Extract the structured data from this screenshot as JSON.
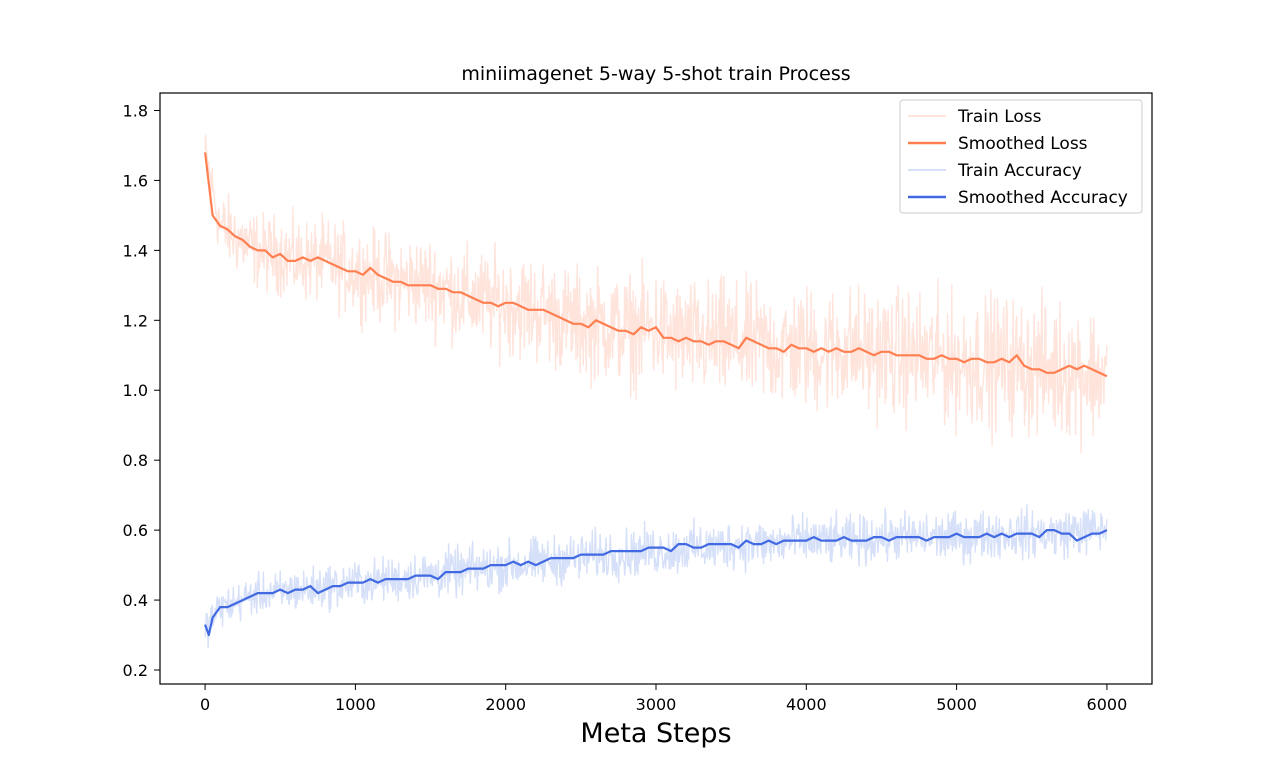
{
  "chart_data": {
    "type": "line",
    "title": "miniimagenet 5-way 5-shot train Process",
    "xlabel": "Meta Steps",
    "ylabel": "",
    "xlim": [
      -300,
      6300
    ],
    "ylim": [
      0.16,
      1.85
    ],
    "x_ticks": [
      0,
      1000,
      2000,
      3000,
      4000,
      5000,
      6000
    ],
    "y_ticks": [
      0.2,
      0.4,
      0.6,
      0.8,
      1.0,
      1.2,
      1.4,
      1.6,
      1.8
    ],
    "y_tick_labels": [
      "0.2",
      "0.4",
      "0.6",
      "0.8",
      "1.0",
      "1.2",
      "1.4",
      "1.6",
      "1.8"
    ],
    "legend_position": "top-right",
    "grid": false,
    "series": [
      {
        "name": "Train Loss",
        "color": "#ffe4dc",
        "kind": "raw",
        "x": [
          0,
          100,
          200,
          300,
          400,
          500,
          600,
          700,
          800,
          900,
          1000,
          1100,
          1200,
          1300,
          1400,
          1500,
          1600,
          1700,
          1800,
          1900,
          2000,
          2100,
          2200,
          2300,
          2400,
          2500,
          2600,
          2700,
          2800,
          2900,
          3000,
          3100,
          3200,
          3300,
          3400,
          3500,
          3600,
          3700,
          3800,
          3900,
          4000,
          4100,
          4200,
          4300,
          4400,
          4500,
          4600,
          4700,
          4800,
          4900,
          5000,
          5100,
          5200,
          5300,
          5400,
          5500,
          5600,
          5700,
          5800,
          5900,
          6000
        ],
        "y_center": [
          1.68,
          1.47,
          1.44,
          1.41,
          1.39,
          1.39,
          1.37,
          1.37,
          1.37,
          1.35,
          1.34,
          1.33,
          1.32,
          1.31,
          1.31,
          1.3,
          1.29,
          1.27,
          1.26,
          1.25,
          1.25,
          1.24,
          1.23,
          1.22,
          1.2,
          1.19,
          1.19,
          1.18,
          1.17,
          1.17,
          1.18,
          1.15,
          1.15,
          1.14,
          1.14,
          1.14,
          1.13,
          1.13,
          1.12,
          1.12,
          1.12,
          1.11,
          1.12,
          1.12,
          1.11,
          1.11,
          1.1,
          1.1,
          1.09,
          1.09,
          1.08,
          1.08,
          1.08,
          1.08,
          1.07,
          1.07,
          1.06,
          1.06,
          1.06,
          1.05,
          1.04
        ],
        "y_spread": [
          0.1,
          0.14,
          0.15,
          0.15,
          0.16,
          0.16,
          0.17,
          0.17,
          0.17,
          0.18,
          0.18,
          0.18,
          0.19,
          0.19,
          0.19,
          0.2,
          0.2,
          0.2,
          0.21,
          0.21,
          0.21,
          0.22,
          0.22,
          0.22,
          0.22,
          0.23,
          0.23,
          0.23,
          0.23,
          0.24,
          0.24,
          0.24,
          0.24,
          0.24,
          0.25,
          0.25,
          0.25,
          0.25,
          0.25,
          0.25,
          0.26,
          0.26,
          0.26,
          0.26,
          0.26,
          0.26,
          0.27,
          0.27,
          0.27,
          0.27,
          0.27,
          0.27,
          0.28,
          0.28,
          0.28,
          0.28,
          0.28,
          0.28,
          0.28,
          0.28,
          0.2
        ]
      },
      {
        "name": "Smoothed Loss",
        "color": "#ff7f50",
        "kind": "smooth",
        "x": [
          0,
          50,
          100,
          150,
          200,
          250,
          300,
          350,
          400,
          450,
          500,
          550,
          600,
          650,
          700,
          750,
          800,
          850,
          900,
          950,
          1000,
          1050,
          1100,
          1150,
          1200,
          1250,
          1300,
          1350,
          1400,
          1450,
          1500,
          1550,
          1600,
          1650,
          1700,
          1750,
          1800,
          1850,
          1900,
          1950,
          2000,
          2050,
          2100,
          2150,
          2200,
          2250,
          2300,
          2350,
          2400,
          2450,
          2500,
          2550,
          2600,
          2650,
          2700,
          2750,
          2800,
          2850,
          2900,
          2950,
          3000,
          3050,
          3100,
          3150,
          3200,
          3250,
          3300,
          3350,
          3400,
          3450,
          3500,
          3550,
          3600,
          3650,
          3700,
          3750,
          3800,
          3850,
          3900,
          3950,
          4000,
          4050,
          4100,
          4150,
          4200,
          4250,
          4300,
          4350,
          4400,
          4450,
          4500,
          4550,
          4600,
          4650,
          4700,
          4750,
          4800,
          4850,
          4900,
          4950,
          5000,
          5050,
          5100,
          5150,
          5200,
          5250,
          5300,
          5350,
          5400,
          5450,
          5500,
          5550,
          5600,
          5650,
          5700,
          5750,
          5800,
          5850,
          5900,
          5950,
          6000
        ],
        "y": [
          1.68,
          1.5,
          1.47,
          1.46,
          1.44,
          1.43,
          1.41,
          1.4,
          1.4,
          1.38,
          1.39,
          1.37,
          1.37,
          1.38,
          1.37,
          1.38,
          1.37,
          1.36,
          1.35,
          1.34,
          1.34,
          1.33,
          1.35,
          1.33,
          1.32,
          1.31,
          1.31,
          1.3,
          1.3,
          1.3,
          1.3,
          1.29,
          1.29,
          1.28,
          1.28,
          1.27,
          1.26,
          1.25,
          1.25,
          1.24,
          1.25,
          1.25,
          1.24,
          1.23,
          1.23,
          1.23,
          1.22,
          1.21,
          1.2,
          1.19,
          1.19,
          1.18,
          1.2,
          1.19,
          1.18,
          1.17,
          1.17,
          1.16,
          1.18,
          1.17,
          1.18,
          1.15,
          1.15,
          1.14,
          1.15,
          1.14,
          1.14,
          1.13,
          1.14,
          1.14,
          1.13,
          1.12,
          1.15,
          1.14,
          1.13,
          1.12,
          1.12,
          1.11,
          1.13,
          1.12,
          1.12,
          1.11,
          1.12,
          1.11,
          1.12,
          1.11,
          1.11,
          1.12,
          1.11,
          1.1,
          1.11,
          1.11,
          1.1,
          1.1,
          1.1,
          1.1,
          1.09,
          1.09,
          1.1,
          1.09,
          1.09,
          1.08,
          1.09,
          1.09,
          1.08,
          1.08,
          1.09,
          1.08,
          1.1,
          1.07,
          1.06,
          1.06,
          1.05,
          1.05,
          1.06,
          1.07,
          1.06,
          1.07,
          1.06,
          1.05,
          1.04
        ]
      },
      {
        "name": "Train Accuracy",
        "color": "#d6e0f8",
        "kind": "raw",
        "x": [
          0,
          100,
          200,
          300,
          400,
          500,
          600,
          700,
          800,
          900,
          1000,
          1100,
          1200,
          1300,
          1400,
          1500,
          1600,
          1700,
          1800,
          1900,
          2000,
          2100,
          2200,
          2300,
          2400,
          2500,
          2600,
          2700,
          2800,
          2900,
          3000,
          3100,
          3200,
          3300,
          3400,
          3500,
          3600,
          3700,
          3800,
          3900,
          4000,
          4100,
          4200,
          4300,
          4400,
          4500,
          4600,
          4700,
          4800,
          4900,
          5000,
          5100,
          5200,
          5300,
          5400,
          5500,
          5600,
          5700,
          5800,
          5900,
          6000
        ],
        "y_center": [
          0.32,
          0.38,
          0.39,
          0.41,
          0.42,
          0.42,
          0.43,
          0.43,
          0.44,
          0.44,
          0.45,
          0.45,
          0.46,
          0.46,
          0.47,
          0.47,
          0.48,
          0.48,
          0.49,
          0.49,
          0.5,
          0.5,
          0.51,
          0.51,
          0.52,
          0.52,
          0.53,
          0.53,
          0.53,
          0.54,
          0.54,
          0.54,
          0.55,
          0.55,
          0.55,
          0.56,
          0.56,
          0.56,
          0.56,
          0.57,
          0.57,
          0.57,
          0.57,
          0.57,
          0.57,
          0.58,
          0.58,
          0.58,
          0.58,
          0.58,
          0.58,
          0.58,
          0.59,
          0.59,
          0.59,
          0.59,
          0.59,
          0.59,
          0.6,
          0.6,
          0.6
        ],
        "y_spread": [
          0.08,
          0.08,
          0.08,
          0.08,
          0.08,
          0.09,
          0.09,
          0.09,
          0.09,
          0.09,
          0.09,
          0.09,
          0.09,
          0.09,
          0.1,
          0.1,
          0.1,
          0.1,
          0.1,
          0.1,
          0.1,
          0.1,
          0.1,
          0.1,
          0.1,
          0.1,
          0.1,
          0.1,
          0.1,
          0.1,
          0.1,
          0.1,
          0.1,
          0.1,
          0.1,
          0.1,
          0.1,
          0.1,
          0.1,
          0.1,
          0.1,
          0.1,
          0.1,
          0.1,
          0.1,
          0.1,
          0.1,
          0.1,
          0.1,
          0.1,
          0.1,
          0.1,
          0.1,
          0.1,
          0.1,
          0.1,
          0.1,
          0.1,
          0.1,
          0.1,
          0.08
        ]
      },
      {
        "name": "Smoothed Accuracy",
        "color": "#4169e1",
        "kind": "smooth",
        "x": [
          0,
          25,
          50,
          100,
          150,
          200,
          250,
          300,
          350,
          400,
          450,
          500,
          550,
          600,
          650,
          700,
          750,
          800,
          850,
          900,
          950,
          1000,
          1050,
          1100,
          1150,
          1200,
          1250,
          1300,
          1350,
          1400,
          1450,
          1500,
          1550,
          1600,
          1650,
          1700,
          1750,
          1800,
          1850,
          1900,
          1950,
          2000,
          2050,
          2100,
          2150,
          2200,
          2250,
          2300,
          2350,
          2400,
          2450,
          2500,
          2550,
          2600,
          2650,
          2700,
          2750,
          2800,
          2850,
          2900,
          2950,
          3000,
          3050,
          3100,
          3150,
          3200,
          3250,
          3300,
          3350,
          3400,
          3450,
          3500,
          3550,
          3600,
          3650,
          3700,
          3750,
          3800,
          3850,
          3900,
          3950,
          4000,
          4050,
          4100,
          4150,
          4200,
          4250,
          4300,
          4350,
          4400,
          4450,
          4500,
          4550,
          4600,
          4650,
          4700,
          4750,
          4800,
          4850,
          4900,
          4950,
          5000,
          5050,
          5100,
          5150,
          5200,
          5250,
          5300,
          5350,
          5400,
          5450,
          5500,
          5550,
          5600,
          5650,
          5700,
          5750,
          5800,
          5850,
          5900,
          5950,
          6000
        ],
        "y": [
          0.33,
          0.3,
          0.35,
          0.38,
          0.38,
          0.39,
          0.4,
          0.41,
          0.42,
          0.42,
          0.42,
          0.43,
          0.42,
          0.43,
          0.43,
          0.44,
          0.42,
          0.43,
          0.44,
          0.44,
          0.45,
          0.45,
          0.45,
          0.46,
          0.45,
          0.46,
          0.46,
          0.46,
          0.46,
          0.47,
          0.47,
          0.47,
          0.46,
          0.48,
          0.48,
          0.48,
          0.49,
          0.49,
          0.49,
          0.5,
          0.5,
          0.5,
          0.51,
          0.5,
          0.51,
          0.5,
          0.51,
          0.52,
          0.52,
          0.52,
          0.52,
          0.53,
          0.53,
          0.53,
          0.53,
          0.54,
          0.54,
          0.54,
          0.54,
          0.54,
          0.55,
          0.55,
          0.55,
          0.54,
          0.56,
          0.56,
          0.55,
          0.55,
          0.56,
          0.56,
          0.56,
          0.56,
          0.55,
          0.57,
          0.56,
          0.56,
          0.57,
          0.56,
          0.57,
          0.57,
          0.57,
          0.57,
          0.58,
          0.57,
          0.57,
          0.57,
          0.58,
          0.57,
          0.57,
          0.57,
          0.58,
          0.58,
          0.57,
          0.58,
          0.58,
          0.58,
          0.58,
          0.57,
          0.58,
          0.58,
          0.58,
          0.59,
          0.58,
          0.58,
          0.58,
          0.59,
          0.58,
          0.59,
          0.58,
          0.59,
          0.59,
          0.59,
          0.58,
          0.6,
          0.6,
          0.59,
          0.59,
          0.57,
          0.58,
          0.59,
          0.59,
          0.6
        ]
      }
    ]
  }
}
